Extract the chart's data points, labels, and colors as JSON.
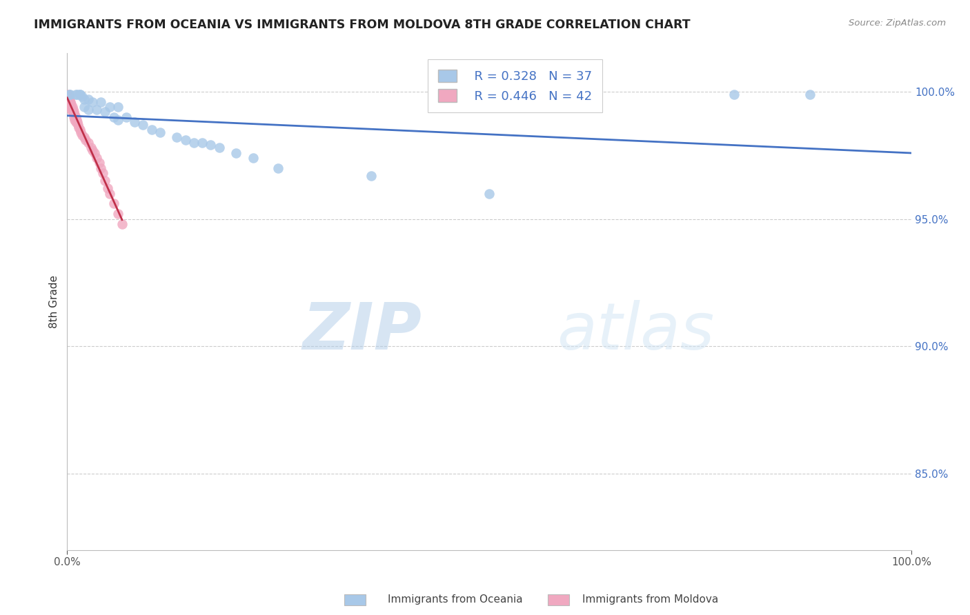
{
  "title": "IMMIGRANTS FROM OCEANIA VS IMMIGRANTS FROM MOLDOVA 8TH GRADE CORRELATION CHART",
  "source": "Source: ZipAtlas.com",
  "ylabel": "8th Grade",
  "xlim": [
    0.0,
    1.0
  ],
  "ylim": [
    0.82,
    1.015
  ],
  "x_tick_positions": [
    0.0,
    1.0
  ],
  "x_tick_labels": [
    "0.0%",
    "100.0%"
  ],
  "y_tick_values": [
    0.85,
    0.9,
    0.95,
    1.0
  ],
  "y_tick_labels": [
    "85.0%",
    "90.0%",
    "95.0%",
    "100.0%"
  ],
  "legend_r_oceania": "R = 0.328",
  "legend_n_oceania": "N = 37",
  "legend_r_moldova": "R = 0.446",
  "legend_n_moldova": "N = 42",
  "color_oceania": "#a8c8e8",
  "color_moldova": "#f0a8c0",
  "line_color_oceania": "#4472c4",
  "line_color_moldova": "#c0304a",
  "watermark_zip": "ZIP",
  "watermark_atlas": "atlas",
  "background_color": "#ffffff",
  "grid_color": "#cccccc",
  "oceania_scatter_x": [
    0.003,
    0.003,
    0.01,
    0.012,
    0.015,
    0.015,
    0.018,
    0.02,
    0.02,
    0.025,
    0.025,
    0.03,
    0.035,
    0.04,
    0.045,
    0.05,
    0.055,
    0.06,
    0.06,
    0.07,
    0.08,
    0.09,
    0.1,
    0.11,
    0.13,
    0.14,
    0.15,
    0.16,
    0.17,
    0.18,
    0.2,
    0.22,
    0.25,
    0.36,
    0.5,
    0.79,
    0.88
  ],
  "oceania_scatter_y": [
    0.999,
    0.999,
    0.999,
    0.999,
    0.999,
    0.999,
    0.998,
    0.997,
    0.994,
    0.997,
    0.993,
    0.996,
    0.993,
    0.996,
    0.992,
    0.994,
    0.99,
    0.994,
    0.989,
    0.99,
    0.988,
    0.987,
    0.985,
    0.984,
    0.982,
    0.981,
    0.98,
    0.98,
    0.979,
    0.978,
    0.976,
    0.974,
    0.97,
    0.967,
    0.96,
    0.999,
    0.999
  ],
  "moldova_scatter_x": [
    0.001,
    0.001,
    0.002,
    0.002,
    0.003,
    0.003,
    0.004,
    0.004,
    0.005,
    0.005,
    0.006,
    0.006,
    0.007,
    0.008,
    0.008,
    0.009,
    0.009,
    0.01,
    0.01,
    0.011,
    0.012,
    0.013,
    0.014,
    0.015,
    0.016,
    0.018,
    0.02,
    0.022,
    0.025,
    0.028,
    0.03,
    0.032,
    0.035,
    0.038,
    0.04,
    0.042,
    0.045,
    0.048,
    0.05,
    0.055,
    0.06,
    0.065
  ],
  "moldova_scatter_y": [
    0.999,
    0.997,
    0.998,
    0.996,
    0.997,
    0.995,
    0.996,
    0.994,
    0.995,
    0.993,
    0.994,
    0.992,
    0.993,
    0.992,
    0.99,
    0.991,
    0.989,
    0.99,
    0.988,
    0.989,
    0.988,
    0.987,
    0.986,
    0.985,
    0.984,
    0.983,
    0.982,
    0.981,
    0.98,
    0.978,
    0.977,
    0.976,
    0.974,
    0.972,
    0.97,
    0.968,
    0.965,
    0.962,
    0.96,
    0.956,
    0.952,
    0.948
  ]
}
